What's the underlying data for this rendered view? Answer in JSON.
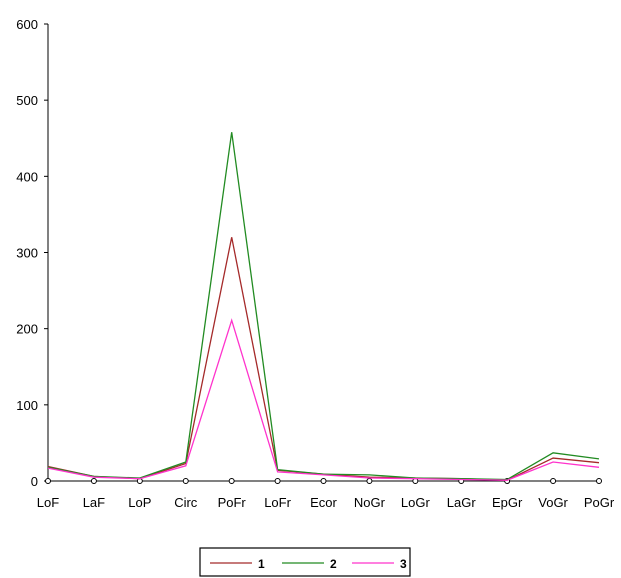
{
  "chart_data": {
    "type": "line",
    "title": "",
    "xlabel": "",
    "ylabel": "",
    "categories": [
      "LoF",
      "LaF",
      "LoP",
      "Circ",
      "PoFr",
      "LoFr",
      "Ecor",
      "NoGr",
      "LoGr",
      "LaGr",
      "EpGr",
      "VoGr",
      "PoGr"
    ],
    "ylim": [
      0,
      600
    ],
    "yticks": [
      0,
      100,
      200,
      300,
      400,
      500,
      600
    ],
    "grid": false,
    "legend_position": "bottom",
    "series": [
      {
        "name": "1",
        "color": "#a52a2a",
        "values": [
          19,
          6,
          3,
          23,
          320,
          14,
          9,
          5,
          4,
          3,
          1,
          30,
          24
        ]
      },
      {
        "name": "2",
        "color": "#228b22",
        "values": [
          18,
          6,
          4,
          25,
          458,
          15,
          9,
          8,
          4,
          3,
          2,
          37,
          29
        ]
      },
      {
        "name": "3",
        "color": "#ff33cc",
        "values": [
          17,
          5,
          3,
          20,
          211,
          12,
          8,
          4,
          3,
          2,
          1,
          25,
          18
        ]
      }
    ]
  }
}
